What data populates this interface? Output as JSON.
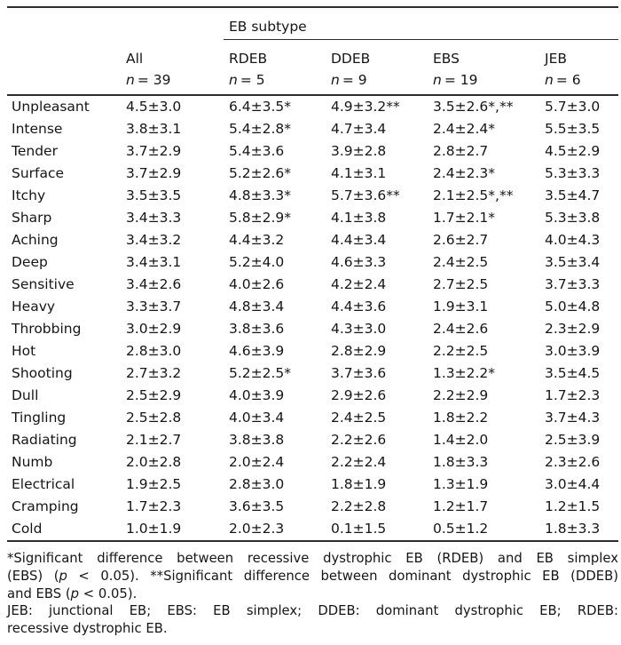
{
  "colors": {
    "background": "#ffffff",
    "text": "#161616",
    "rule": "#2e2e2e"
  },
  "table": {
    "spanner_label": "EB subtype",
    "columns": [
      {
        "label": "All",
        "n_italic": "n",
        "n_rest": "= 39"
      },
      {
        "label": "RDEB",
        "n_italic": "n",
        "n_rest": "= 5"
      },
      {
        "label": "DDEB",
        "n_italic": "n",
        "n_rest": "= 9"
      },
      {
        "label": "EBS",
        "n_italic": "n",
        "n_rest": "= 19"
      },
      {
        "label": "JEB",
        "n_italic": "n",
        "n_rest": "= 6"
      }
    ],
    "rows": [
      {
        "label": "Unpleasant",
        "values": [
          "4.5±3.0",
          "6.4±3.5*",
          "4.9±3.2**",
          "3.5±2.6*,**",
          "5.7±3.0"
        ]
      },
      {
        "label": "Intense",
        "values": [
          "3.8±3.1",
          "5.4±2.8*",
          "4.7±3.4",
          "2.4±2.4*",
          "5.5±3.5"
        ]
      },
      {
        "label": "Tender",
        "values": [
          "3.7±2.9",
          "5.4±3.6",
          "3.9±2.8",
          "2.8±2.7",
          "4.5±2.9"
        ]
      },
      {
        "label": "Surface",
        "values": [
          "3.7±2.9",
          "5.2±2.6*",
          "4.1±3.1",
          "2.4±2.3*",
          "5.3±3.3"
        ]
      },
      {
        "label": "Itchy",
        "values": [
          "3.5±3.5",
          "4.8±3.3*",
          "5.7±3.6**",
          "2.1±2.5*,**",
          "3.5±4.7"
        ]
      },
      {
        "label": "Sharp",
        "values": [
          "3.4±3.3",
          "5.8±2.9*",
          "4.1±3.8",
          "1.7±2.1*",
          "5.3±3.8"
        ]
      },
      {
        "label": "Aching",
        "values": [
          "3.4±3.2",
          "4.4±3.2",
          "4.4±3.4",
          "2.6±2.7",
          "4.0±4.3"
        ]
      },
      {
        "label": "Deep",
        "values": [
          "3.4±3.1",
          "5.2±4.0",
          "4.6±3.3",
          "2.4±2.5",
          "3.5±3.4"
        ]
      },
      {
        "label": "Sensitive",
        "values": [
          "3.4±2.6",
          "4.0±2.6",
          "4.2±2.4",
          "2.7±2.5",
          "3.7±3.3"
        ]
      },
      {
        "label": "Heavy",
        "values": [
          "3.3±3.7",
          "4.8±3.4",
          "4.4±3.6",
          "1.9±3.1",
          "5.0±4.8"
        ]
      },
      {
        "label": "Throbbing",
        "values": [
          "3.0±2.9",
          "3.8±3.6",
          "4.3±3.0",
          "2.4±2.6",
          "2.3±2.9"
        ]
      },
      {
        "label": "Hot",
        "values": [
          "2.8±3.0",
          "4.6±3.9",
          "2.8±2.9",
          "2.2±2.5",
          "3.0±3.9"
        ]
      },
      {
        "label": "Shooting",
        "values": [
          "2.7±3.2",
          "5.2±2.5*",
          "3.7±3.6",
          "1.3±2.2*",
          "3.5±4.5"
        ]
      },
      {
        "label": "Dull",
        "values": [
          "2.5±2.9",
          "4.0±3.9",
          "2.9±2.6",
          "2.2±2.9",
          "1.7±2.3"
        ]
      },
      {
        "label": "Tingling",
        "values": [
          "2.5±2.8",
          "4.0±3.4",
          "2.4±2.5",
          "1.8±2.2",
          "3.7±4.3"
        ]
      },
      {
        "label": "Radiating",
        "values": [
          "2.1±2.7",
          "3.8±3.8",
          "2.2±2.6",
          "1.4±2.0",
          "2.5±3.9"
        ]
      },
      {
        "label": "Numb",
        "values": [
          "2.0±2.8",
          "2.0±2.4",
          "2.2±2.4",
          "1.8±3.3",
          "2.3±2.6"
        ]
      },
      {
        "label": "Electrical",
        "values": [
          "1.9±2.5",
          "2.8±3.0",
          "1.8±1.9",
          "1.3±1.9",
          "3.0±4.4"
        ]
      },
      {
        "label": "Cramping",
        "values": [
          "1.7±2.3",
          "3.6±3.5",
          "2.2±2.8",
          "1.2±1.7",
          "1.2±1.5"
        ]
      },
      {
        "label": "Cold",
        "values": [
          "1.0±1.9",
          "2.0±2.3",
          "0.1±1.5",
          "0.5±1.2",
          "1.8±3.3"
        ]
      }
    ]
  },
  "footnotes": {
    "lines": [
      {
        "just": true,
        "segments": [
          {
            "t": "*Significant difference between recessive dystrophic EB (RDEB) and EB simplex"
          }
        ]
      },
      {
        "just": true,
        "segments": [
          {
            "t": "(EBS) ("
          },
          {
            "t": "p",
            "i": true
          },
          {
            "t": " < 0.05). **Significant difference between dominant dystrophic EB (DDEB)"
          }
        ]
      },
      {
        "just": false,
        "segments": [
          {
            "t": "and EBS ("
          },
          {
            "t": "p",
            "i": true
          },
          {
            "t": " < 0.05)."
          }
        ]
      },
      {
        "just": true,
        "segments": [
          {
            "t": "JEB: junctional EB; EBS: EB simplex; DDEB: dominant dystrophic EB; RDEB:"
          }
        ]
      },
      {
        "just": false,
        "segments": [
          {
            "t": "recessive dystrophic EB."
          }
        ]
      }
    ]
  }
}
